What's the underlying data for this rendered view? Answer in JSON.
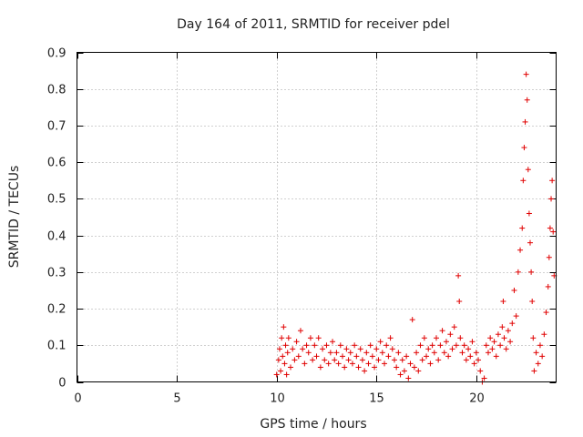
{
  "chart_data": {
    "type": "scatter",
    "title": "Day 164 of 2011, SRMTID for receiver pdel",
    "xlabel": "GPS time / hours",
    "ylabel": "SRMTID / TECUs",
    "xlim": [
      0,
      24
    ],
    "ylim": [
      0,
      0.9
    ],
    "xticks": [
      0,
      5,
      10,
      15,
      20
    ],
    "yticks": [
      0,
      0.1,
      0.2,
      0.3,
      0.4,
      0.5,
      0.6,
      0.7,
      0.8,
      0.9
    ],
    "grid": true,
    "marker": "plus",
    "color": "#e00000",
    "series": [
      {
        "name": "pdel",
        "points": [
          [
            10.0,
            0.02
          ],
          [
            10.1,
            0.06
          ],
          [
            10.15,
            0.09
          ],
          [
            10.2,
            0.03
          ],
          [
            10.25,
            0.12
          ],
          [
            10.3,
            0.07
          ],
          [
            10.35,
            0.15
          ],
          [
            10.4,
            0.05
          ],
          [
            10.45,
            0.1
          ],
          [
            10.5,
            0.02
          ],
          [
            10.55,
            0.08
          ],
          [
            10.6,
            0.12
          ],
          [
            10.7,
            0.04
          ],
          [
            10.8,
            0.09
          ],
          [
            10.9,
            0.06
          ],
          [
            11.0,
            0.11
          ],
          [
            11.1,
            0.07
          ],
          [
            11.2,
            0.14
          ],
          [
            11.3,
            0.09
          ],
          [
            11.4,
            0.05
          ],
          [
            11.5,
            0.1
          ],
          [
            11.6,
            0.08
          ],
          [
            11.7,
            0.12
          ],
          [
            11.8,
            0.06
          ],
          [
            11.9,
            0.1
          ],
          [
            12.0,
            0.07
          ],
          [
            12.1,
            0.12
          ],
          [
            12.2,
            0.04
          ],
          [
            12.3,
            0.09
          ],
          [
            12.4,
            0.06
          ],
          [
            12.5,
            0.1
          ],
          [
            12.6,
            0.05
          ],
          [
            12.7,
            0.08
          ],
          [
            12.8,
            0.11
          ],
          [
            12.9,
            0.06
          ],
          [
            13.0,
            0.08
          ],
          [
            13.1,
            0.05
          ],
          [
            13.2,
            0.1
          ],
          [
            13.3,
            0.07
          ],
          [
            13.4,
            0.04
          ],
          [
            13.5,
            0.09
          ],
          [
            13.6,
            0.06
          ],
          [
            13.7,
            0.08
          ],
          [
            13.8,
            0.05
          ],
          [
            13.9,
            0.1
          ],
          [
            14.0,
            0.07
          ],
          [
            14.1,
            0.04
          ],
          [
            14.2,
            0.09
          ],
          [
            14.3,
            0.06
          ],
          [
            14.4,
            0.03
          ],
          [
            14.5,
            0.08
          ],
          [
            14.6,
            0.05
          ],
          [
            14.7,
            0.1
          ],
          [
            14.8,
            0.07
          ],
          [
            14.9,
            0.04
          ],
          [
            15.0,
            0.09
          ],
          [
            15.1,
            0.06
          ],
          [
            15.2,
            0.11
          ],
          [
            15.3,
            0.08
          ],
          [
            15.4,
            0.05
          ],
          [
            15.5,
            0.1
          ],
          [
            15.6,
            0.07
          ],
          [
            15.7,
            0.12
          ],
          [
            15.8,
            0.09
          ],
          [
            15.9,
            0.06
          ],
          [
            16.0,
            0.04
          ],
          [
            16.1,
            0.08
          ],
          [
            16.2,
            0.02
          ],
          [
            16.3,
            0.06
          ],
          [
            16.4,
            0.03
          ],
          [
            16.5,
            0.07
          ],
          [
            16.6,
            0.01
          ],
          [
            16.7,
            0.05
          ],
          [
            16.8,
            0.17
          ],
          [
            16.9,
            0.04
          ],
          [
            17.0,
            0.08
          ],
          [
            17.1,
            0.03
          ],
          [
            17.2,
            0.1
          ],
          [
            17.3,
            0.06
          ],
          [
            17.4,
            0.12
          ],
          [
            17.5,
            0.07
          ],
          [
            17.6,
            0.09
          ],
          [
            17.7,
            0.05
          ],
          [
            17.8,
            0.1
          ],
          [
            17.9,
            0.08
          ],
          [
            18.0,
            0.12
          ],
          [
            18.1,
            0.06
          ],
          [
            18.2,
            0.1
          ],
          [
            18.3,
            0.14
          ],
          [
            18.4,
            0.08
          ],
          [
            18.5,
            0.11
          ],
          [
            18.6,
            0.07
          ],
          [
            18.7,
            0.13
          ],
          [
            18.8,
            0.09
          ],
          [
            18.9,
            0.15
          ],
          [
            19.0,
            0.1
          ],
          [
            19.1,
            0.29
          ],
          [
            19.15,
            0.22
          ],
          [
            19.2,
            0.12
          ],
          [
            19.3,
            0.08
          ],
          [
            19.4,
            0.1
          ],
          [
            19.5,
            0.06
          ],
          [
            19.6,
            0.09
          ],
          [
            19.7,
            0.07
          ],
          [
            19.8,
            0.11
          ],
          [
            19.9,
            0.05
          ],
          [
            20.0,
            0.08
          ],
          [
            20.1,
            0.06
          ],
          [
            20.2,
            0.03
          ],
          [
            20.3,
            0.0
          ],
          [
            20.4,
            0.01
          ],
          [
            20.5,
            0.1
          ],
          [
            20.6,
            0.08
          ],
          [
            20.7,
            0.12
          ],
          [
            20.8,
            0.09
          ],
          [
            20.9,
            0.11
          ],
          [
            21.0,
            0.07
          ],
          [
            21.1,
            0.13
          ],
          [
            21.2,
            0.1
          ],
          [
            21.3,
            0.15
          ],
          [
            21.35,
            0.22
          ],
          [
            21.4,
            0.12
          ],
          [
            21.5,
            0.09
          ],
          [
            21.6,
            0.14
          ],
          [
            21.7,
            0.11
          ],
          [
            21.8,
            0.16
          ],
          [
            21.9,
            0.25
          ],
          [
            22.0,
            0.18
          ],
          [
            22.1,
            0.3
          ],
          [
            22.2,
            0.36
          ],
          [
            22.3,
            0.42
          ],
          [
            22.35,
            0.55
          ],
          [
            22.4,
            0.64
          ],
          [
            22.45,
            0.71
          ],
          [
            22.5,
            0.84
          ],
          [
            22.55,
            0.77
          ],
          [
            22.6,
            0.58
          ],
          [
            22.65,
            0.46
          ],
          [
            22.7,
            0.38
          ],
          [
            22.75,
            0.3
          ],
          [
            22.8,
            0.22
          ],
          [
            22.85,
            0.12
          ],
          [
            22.9,
            0.03
          ],
          [
            23.0,
            0.08
          ],
          [
            23.1,
            0.05
          ],
          [
            23.2,
            0.1
          ],
          [
            23.3,
            0.07
          ],
          [
            23.4,
            0.13
          ],
          [
            23.5,
            0.19
          ],
          [
            23.6,
            0.26
          ],
          [
            23.65,
            0.34
          ],
          [
            23.7,
            0.42
          ],
          [
            23.75,
            0.5
          ],
          [
            23.8,
            0.55
          ],
          [
            23.85,
            0.41
          ],
          [
            23.9,
            0.29
          ]
        ]
      }
    ]
  }
}
